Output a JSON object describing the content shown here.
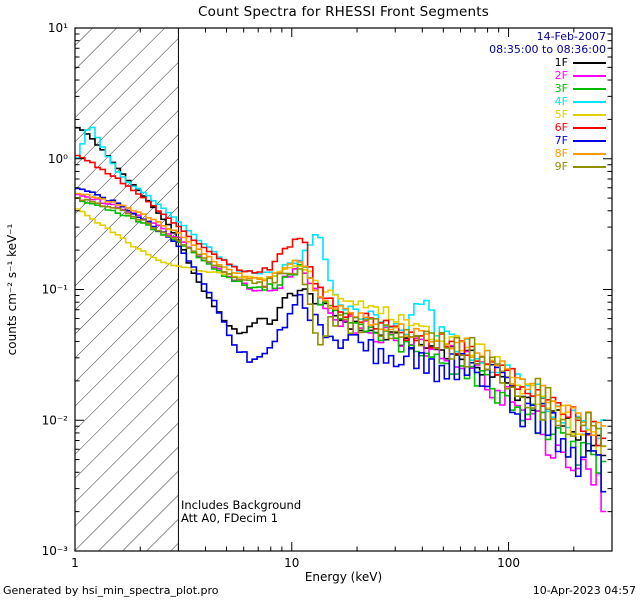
{
  "title": "Count Spectra for RHESSI Front Segments",
  "header": {
    "date": "14-Feb-2007",
    "time_range": "08:35:00 to 08:36:00",
    "color": "#000099"
  },
  "annotations": {
    "background": "Includes Background",
    "attenuator": "Att A0, FDecim 1"
  },
  "footer": {
    "left": "Generated by hsi_min_spectra_plot.pro",
    "right": "10-Apr-2023 04:57"
  },
  "axes": {
    "x": {
      "label": "Energy (keV)",
      "tick_values": [
        1,
        10,
        100
      ],
      "tick_labels": [
        "1",
        "10",
        "100"
      ]
    },
    "y": {
      "label": "counts cm⁻² s⁻¹ keV⁻¹",
      "tick_values": [
        0.001,
        0.01,
        0.1,
        1,
        10
      ],
      "tick_labels": [
        "10⁻³",
        "10⁻²",
        "10⁻¹",
        "10⁰",
        "10¹"
      ]
    }
  },
  "hatch": {
    "x_end": 3
  },
  "chart_data": {
    "type": "line",
    "title": "Count Spectra for RHESSI Front Segments",
    "xlabel": "Energy (keV)",
    "ylabel": "counts cm-2 s-1 keV-1",
    "xscale": "log",
    "yscale": "log",
    "xlim": [
      1,
      300
    ],
    "ylim": [
      0.001,
      10
    ],
    "grid": false,
    "legend_position": "top-right",
    "x": [
      1.0,
      1.17,
      1.38,
      1.62,
      1.91,
      2.24,
      2.63,
      3.09,
      3.63,
      4.27,
      5.01,
      5.89,
      6.92,
      8.13,
      9.55,
      11.2,
      13.2,
      15.5,
      18.2,
      21.4,
      25.1,
      29.5,
      34.7,
      40.7,
      47.9,
      56.2,
      66.1,
      77.6,
      91.2,
      107,
      126,
      148,
      174,
      204,
      240,
      282
    ],
    "series": [
      {
        "name": "1F",
        "color": "#000000",
        "noise": 0.22,
        "values": [
          1.8,
          1.5,
          1.1,
          0.8,
          0.6,
          0.45,
          0.33,
          0.22,
          0.12,
          0.08,
          0.055,
          0.045,
          0.06,
          0.055,
          0.09,
          0.1,
          0.08,
          0.065,
          0.055,
          0.05,
          0.045,
          0.042,
          0.04,
          0.037,
          0.035,
          0.034,
          0.03,
          0.025,
          0.02,
          0.017,
          0.014,
          0.012,
          0.01,
          0.008,
          0.007,
          0.006
        ]
      },
      {
        "name": "2F",
        "color": "#ff00ff",
        "noise": 0.35,
        "values": [
          0.55,
          0.5,
          0.46,
          0.42,
          0.38,
          0.33,
          0.28,
          0.24,
          0.19,
          0.155,
          0.13,
          0.115,
          0.1,
          0.1,
          0.12,
          0.16,
          0.085,
          0.065,
          0.055,
          0.05,
          0.046,
          0.042,
          0.038,
          0.035,
          0.032,
          0.03,
          0.026,
          0.022,
          0.017,
          0.013,
          0.01,
          0.008,
          0.006,
          0.0045,
          0.0035,
          0.0025
        ]
      },
      {
        "name": "3F",
        "color": "#00bb00",
        "noise": 0.25,
        "values": [
          0.5,
          0.46,
          0.42,
          0.38,
          0.34,
          0.3,
          0.26,
          0.225,
          0.185,
          0.15,
          0.125,
          0.11,
          0.1,
          0.105,
          0.125,
          0.155,
          0.085,
          0.068,
          0.058,
          0.052,
          0.046,
          0.04,
          0.035,
          0.031,
          0.028,
          0.026,
          0.023,
          0.02,
          0.016,
          0.013,
          0.011,
          0.009,
          0.0075,
          0.006,
          0.005,
          0.0045
        ]
      },
      {
        "name": "4F",
        "color": "#00e5ff",
        "noise": 0.25,
        "values": [
          0.9,
          1.9,
          1.1,
          0.75,
          0.6,
          0.5,
          0.4,
          0.32,
          0.25,
          0.2,
          0.16,
          0.14,
          0.13,
          0.13,
          0.15,
          0.18,
          0.28,
          0.09,
          0.075,
          0.065,
          0.06,
          0.055,
          0.05,
          0.09,
          0.045,
          0.04,
          0.035,
          0.03,
          0.025,
          0.021,
          0.018,
          0.015,
          0.012,
          0.01,
          0.009,
          0.008
        ]
      },
      {
        "name": "5F",
        "color": "#e3cf00",
        "noise": 0.22,
        "values": [
          0.42,
          0.36,
          0.3,
          0.25,
          0.21,
          0.18,
          0.16,
          0.15,
          0.14,
          0.135,
          0.13,
          0.125,
          0.12,
          0.125,
          0.14,
          0.16,
          0.11,
          0.095,
          0.085,
          0.078,
          0.07,
          0.063,
          0.056,
          0.05,
          0.045,
          0.042,
          0.038,
          0.032,
          0.026,
          0.021,
          0.017,
          0.014,
          0.011,
          0.009,
          0.0075,
          0.006
        ]
      },
      {
        "name": "6F",
        "color": "#ff0000",
        "noise": 0.22,
        "values": [
          1.1,
          0.95,
          0.8,
          0.68,
          0.55,
          0.45,
          0.36,
          0.29,
          0.23,
          0.19,
          0.16,
          0.14,
          0.135,
          0.15,
          0.22,
          0.25,
          0.1,
          0.08,
          0.065,
          0.06,
          0.055,
          0.05,
          0.046,
          0.042,
          0.04,
          0.038,
          0.034,
          0.029,
          0.024,
          0.02,
          0.017,
          0.014,
          0.012,
          0.01,
          0.0085,
          0.007
        ]
      },
      {
        "name": "7F",
        "color": "#0000e6",
        "noise": 0.45,
        "values": [
          0.62,
          0.56,
          0.5,
          0.44,
          0.38,
          0.32,
          0.26,
          0.2,
          0.14,
          0.09,
          0.05,
          0.032,
          0.028,
          0.035,
          0.06,
          0.09,
          0.05,
          0.035,
          0.04,
          0.035,
          0.032,
          0.03,
          0.028,
          0.027,
          0.026,
          0.026,
          0.024,
          0.021,
          0.017,
          0.014,
          0.011,
          0.009,
          0.0075,
          0.006,
          0.005,
          0.004
        ]
      },
      {
        "name": "8F",
        "color": "#ff9900",
        "noise": 0.22,
        "values": [
          0.55,
          0.52,
          0.48,
          0.44,
          0.4,
          0.35,
          0.3,
          0.26,
          0.21,
          0.17,
          0.145,
          0.13,
          0.12,
          0.125,
          0.15,
          0.17,
          0.095,
          0.075,
          0.065,
          0.06,
          0.056,
          0.052,
          0.048,
          0.044,
          0.042,
          0.04,
          0.036,
          0.031,
          0.026,
          0.022,
          0.018,
          0.016,
          0.013,
          0.011,
          0.0095,
          0.008
        ]
      },
      {
        "name": "9F",
        "color": "#8f8f00",
        "noise": 0.38,
        "values": [
          0.5,
          0.47,
          0.43,
          0.4,
          0.36,
          0.31,
          0.27,
          0.23,
          0.19,
          0.16,
          0.135,
          0.12,
          0.11,
          0.115,
          0.13,
          0.15,
          0.04,
          0.06,
          0.05,
          0.055,
          0.05,
          0.046,
          0.042,
          0.04,
          0.038,
          0.036,
          0.033,
          0.028,
          0.024,
          0.02,
          0.017,
          0.014,
          0.012,
          0.01,
          0.0085,
          0.007
        ]
      }
    ]
  }
}
